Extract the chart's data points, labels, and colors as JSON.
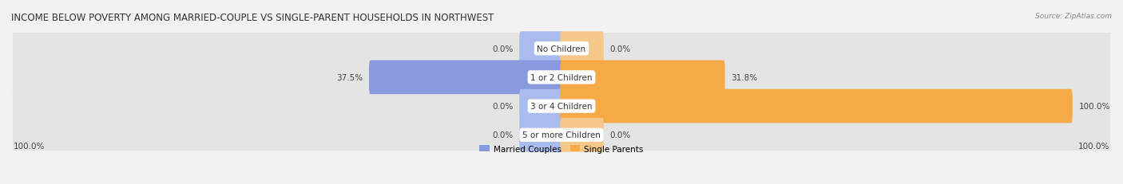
{
  "title": "INCOME BELOW POVERTY AMONG MARRIED-COUPLE VS SINGLE-PARENT HOUSEHOLDS IN NORTHWEST",
  "source": "Source: ZipAtlas.com",
  "categories": [
    "No Children",
    "1 or 2 Children",
    "3 or 4 Children",
    "5 or more Children"
  ],
  "married_values": [
    0.0,
    37.5,
    0.0,
    0.0
  ],
  "single_values": [
    0.0,
    31.8,
    100.0,
    0.0
  ],
  "married_color": "#8899dd",
  "married_color_light": "#aabbee",
  "single_color": "#f5a947",
  "single_color_light": "#f5c88a",
  "married_label": "Married Couples",
  "single_label": "Single Parents",
  "background_color": "#f2f2f2",
  "row_bg_color": "#e4e4e4",
  "title_fontsize": 8.5,
  "label_fontsize": 7.5,
  "cat_fontsize": 7.5,
  "tick_fontsize": 7.5,
  "max_val": 100.0,
  "stub_size": 8.0,
  "bottom_left_label": "100.0%",
  "bottom_right_label": "100.0%"
}
